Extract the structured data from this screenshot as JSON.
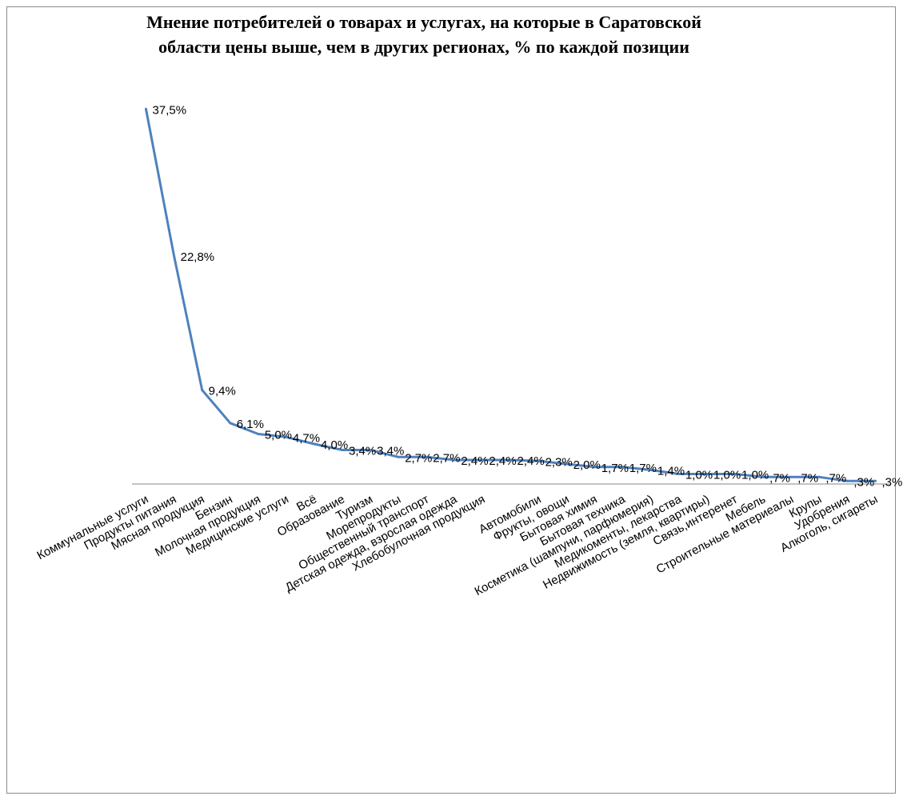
{
  "chart_data": {
    "type": "line",
    "title": "Мнение потребителей о товарах и услугах, на которые в Саратовской области цены выше, чем в других регионах, % по каждой позиции",
    "xlabel": "",
    "ylabel": "",
    "ylim": [
      0,
      40
    ],
    "grid": false,
    "legend": "none",
    "categories": [
      "Коммунальные услуги",
      "Продукты питания",
      "Мясная продукция",
      "Бензин",
      "Молочная продукция",
      "Медицинские услуги",
      "Всё",
      "Образование",
      "Туризм",
      "Морепродукты",
      "Общественный транспорт",
      "Детская одежда, взрослая одежда",
      "Хлебобулочная продукция",
      "",
      "Автомобили",
      "Фрукты, овощи",
      "Бытовая химия",
      "Бытовая техника",
      "Косметика (шампуни, парфюмерия)",
      "Медикоменты, лекарства",
      "Недвижимость (земля, квартиры)",
      "Связь,интеренет",
      "Мебель",
      "Строительные материеалы",
      "Крупы",
      "Удобрения",
      "Алкоголь, сигареты"
    ],
    "series": [
      {
        "values": [
          37.5,
          22.8,
          9.4,
          6.1,
          5.0,
          4.7,
          4.0,
          3.4,
          3.4,
          2.7,
          2.7,
          2.4,
          2.4,
          2.4,
          2.3,
          2.0,
          1.7,
          1.7,
          1.4,
          1.0,
          1.0,
          1.0,
          0.7,
          0.7,
          0.7,
          0.3,
          0.3
        ],
        "labels": [
          "37,5%",
          "22,8%",
          "9,4%",
          "6,1%",
          "5,0%",
          "4,7%",
          "4,0%",
          "3,4%",
          "3,4%",
          "2,7%",
          "2,7%",
          "2,4%",
          "2,4%",
          "2,4%",
          "2,3%",
          "2,0%",
          "1,7%",
          "1,7%",
          "1,4%",
          "1,0%",
          "1,0%",
          "1,0%",
          ",7%",
          ",7%",
          ",7%",
          ",3%",
          ",3%"
        ]
      }
    ],
    "line_color": "#4f81bd",
    "axis_color": "#868686"
  }
}
